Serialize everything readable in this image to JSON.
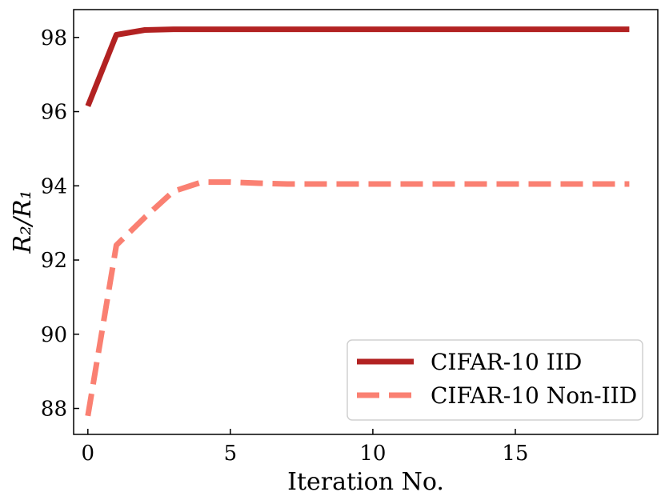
{
  "chart_data": {
    "type": "line",
    "xlabel": "Iteration No.",
    "ylabel": "R₂/R₁",
    "xlim": [
      -0.5,
      20.0
    ],
    "ylim": [
      87.3,
      98.75
    ],
    "x_ticks": [
      0,
      5,
      10,
      15
    ],
    "y_ticks": [
      88,
      90,
      92,
      94,
      96,
      98
    ],
    "x_tick_labels": [
      "0",
      "5",
      "10",
      "15"
    ],
    "y_tick_labels": [
      "88",
      "90",
      "92",
      "94",
      "96",
      "98"
    ],
    "legend_position": "bottom-right",
    "series": [
      {
        "name": "CIFAR-10 IID",
        "color": "#b22222",
        "style": "solid",
        "x": [
          0,
          1,
          2,
          3,
          4,
          5,
          6,
          7,
          8,
          9,
          10,
          11,
          12,
          13,
          14,
          15,
          16,
          17,
          18,
          19
        ],
        "values": [
          96.15,
          98.07,
          98.2,
          98.22,
          98.22,
          98.22,
          98.22,
          98.22,
          98.22,
          98.22,
          98.22,
          98.22,
          98.22,
          98.22,
          98.22,
          98.22,
          98.22,
          98.22,
          98.22,
          98.22
        ]
      },
      {
        "name": "CIFAR-10 Non-IID",
        "color": "#fa8072",
        "style": "dashed",
        "x": [
          0,
          1,
          2,
          3,
          4,
          5,
          6,
          7,
          8,
          9,
          10,
          11,
          12,
          13,
          14,
          15,
          16,
          17,
          18,
          19
        ],
        "values": [
          87.8,
          92.4,
          93.15,
          93.85,
          94.1,
          94.1,
          94.07,
          94.05,
          94.05,
          94.05,
          94.05,
          94.05,
          94.05,
          94.05,
          94.05,
          94.05,
          94.05,
          94.05,
          94.05,
          94.05
        ]
      }
    ]
  }
}
